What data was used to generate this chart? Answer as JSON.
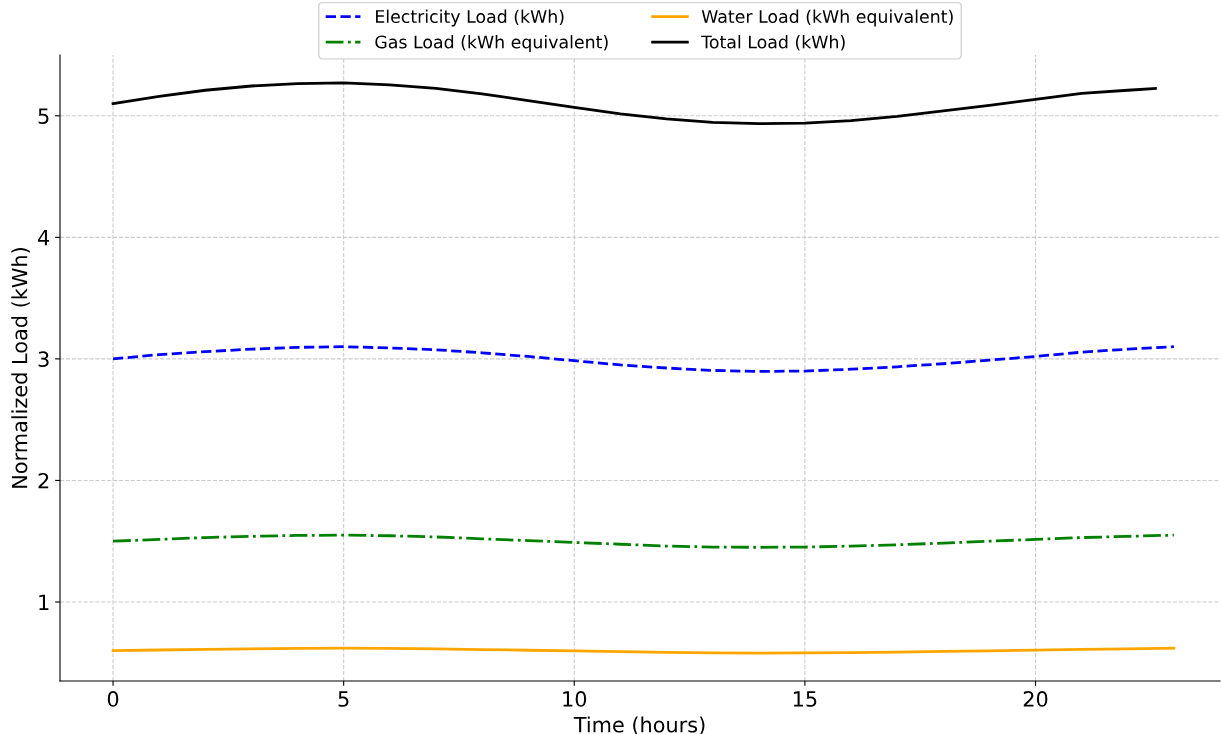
{
  "chart_data": {
    "type": "line",
    "xlabel": "Time (hours)",
    "ylabel": "Normalized Load (kWh)",
    "x": [
      0,
      1,
      2,
      3,
      4,
      5,
      6,
      7,
      8,
      9,
      10,
      11,
      12,
      13,
      14,
      15,
      16,
      17,
      18,
      19,
      20,
      21,
      22,
      23
    ],
    "series": [
      {
        "name": "Electricity Load (kWh)",
        "color": "#0000ff",
        "line_style": "dashed",
        "values": [
          3.0,
          3.035,
          3.06,
          3.08,
          3.095,
          3.1,
          3.09,
          3.075,
          3.05,
          3.02,
          2.985,
          2.95,
          2.925,
          2.905,
          2.897,
          2.9,
          2.915,
          2.935,
          2.96,
          2.99,
          3.02,
          3.055,
          3.08,
          3.1
        ]
      },
      {
        "name": "Gas Load (kWh equivalent)",
        "color": "#008000",
        "line_style": "dashdot",
        "values": [
          1.5,
          1.515,
          1.53,
          1.54,
          1.548,
          1.55,
          1.545,
          1.535,
          1.52,
          1.505,
          1.49,
          1.475,
          1.46,
          1.452,
          1.45,
          1.452,
          1.46,
          1.47,
          1.485,
          1.5,
          1.515,
          1.53,
          1.54,
          1.55
        ]
      },
      {
        "name": "Water Load (kWh equivalent)",
        "color": "#ffa500",
        "line_style": "solid",
        "values": [
          0.6,
          0.605,
          0.61,
          0.615,
          0.618,
          0.62,
          0.618,
          0.614,
          0.609,
          0.603,
          0.597,
          0.591,
          0.586,
          0.582,
          0.58,
          0.581,
          0.584,
          0.588,
          0.593,
          0.598,
          0.604,
          0.61,
          0.615,
          0.62
        ]
      },
      {
        "name": "Total Load (kWh)",
        "color": "#000000",
        "line_style": "solid",
        "x": [
          0,
          1,
          2,
          3,
          4,
          5,
          6,
          7,
          8,
          9,
          10,
          11,
          12,
          13,
          14,
          15,
          16,
          17,
          18,
          19,
          20,
          21,
          22,
          22.6
        ],
        "values": [
          5.1,
          5.16,
          5.21,
          5.245,
          5.265,
          5.27,
          5.255,
          5.225,
          5.18,
          5.125,
          5.07,
          5.015,
          4.975,
          4.945,
          4.935,
          4.94,
          4.96,
          4.995,
          5.04,
          5.085,
          5.135,
          5.185,
          5.21,
          5.225
        ]
      }
    ],
    "xlim": [
      -1.15,
      24.0
    ],
    "ylim": [
      0.35,
      5.5
    ],
    "xticks": [
      0,
      5,
      10,
      15,
      20
    ],
    "yticks": [
      1,
      2,
      3,
      4,
      5
    ],
    "grid": true,
    "legend": "top",
    "marker": "none"
  }
}
